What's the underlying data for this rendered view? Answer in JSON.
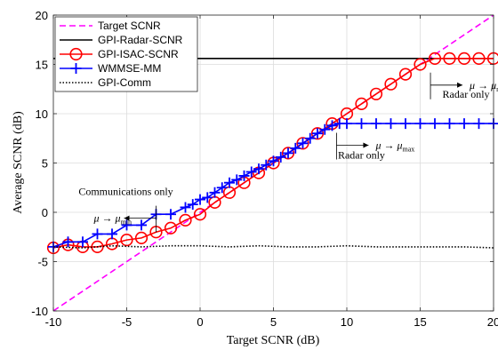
{
  "chart_data": {
    "type": "line",
    "xlabel": "Target SCNR (dB)",
    "ylabel": "Average SCNR (dB)",
    "xlim": [
      -10,
      20
    ],
    "ylim": [
      -10,
      20
    ],
    "xticks": [
      -10,
      -5,
      0,
      5,
      10,
      15,
      20
    ],
    "yticks": [
      -10,
      -5,
      0,
      5,
      10,
      15,
      20
    ],
    "grid": true,
    "legend_position": "top-left",
    "series": [
      {
        "name": "Target SCNR",
        "color": "#ff00ff",
        "style": "dashed",
        "marker": "none",
        "x": [
          -10,
          20
        ],
        "y": [
          -10,
          20
        ]
      },
      {
        "name": "GPI-Radar-SCNR",
        "color": "#000000",
        "style": "solid",
        "marker": "none",
        "x": [
          -10,
          20
        ],
        "y": [
          15.6,
          15.6
        ]
      },
      {
        "name": "GPI-ISAC-SCNR",
        "color": "#ff0000",
        "style": "solid",
        "marker": "circle",
        "x": [
          -10,
          -9,
          -8,
          -7,
          -6,
          -5,
          -4,
          -3,
          -2,
          -1,
          0,
          1,
          2,
          3,
          4,
          5,
          6,
          7,
          8,
          9,
          10,
          11,
          12,
          13,
          14,
          15,
          16,
          17,
          18,
          19,
          20
        ],
        "y": [
          -3.6,
          -3.3,
          -3.5,
          -3.5,
          -3.2,
          -2.8,
          -2.6,
          -2.0,
          -1.6,
          -0.8,
          -0.2,
          1.0,
          2.0,
          3.0,
          4.0,
          5.0,
          6.0,
          7.0,
          8.0,
          9.0,
          10.0,
          11.0,
          12.0,
          13.0,
          14.0,
          15.0,
          15.6,
          15.6,
          15.6,
          15.6,
          15.6
        ]
      },
      {
        "name": "WMMSE-MM",
        "color": "#0000ff",
        "style": "solid",
        "marker": "plus",
        "x": [
          -10,
          -9,
          -8,
          -7,
          -6,
          -5,
          -4,
          -3,
          -2,
          -1,
          -0.5,
          0,
          0.5,
          1,
          1.5,
          2,
          2.5,
          3,
          3.5,
          4,
          4.5,
          5,
          5.5,
          6,
          6.5,
          7,
          7.5,
          8,
          8.5,
          9,
          9.5,
          10,
          11,
          12,
          13,
          14,
          15,
          16,
          17,
          18,
          19,
          20
        ],
        "y": [
          -3.5,
          -3.0,
          -3.0,
          -2.2,
          -2.2,
          -1.3,
          -1.3,
          -0.2,
          -0.2,
          0.5,
          0.8,
          1.3,
          1.5,
          2.0,
          2.5,
          3.0,
          3.3,
          3.7,
          4.1,
          4.4,
          4.8,
          5.2,
          5.6,
          6.0,
          6.5,
          7.0,
          7.5,
          8.0,
          8.4,
          8.8,
          9.0,
          9.0,
          9.0,
          9.0,
          9.0,
          9.0,
          9.0,
          9.0,
          9.0,
          9.0,
          9.0,
          9.0
        ]
      },
      {
        "name": "GPI-Comm",
        "color": "#000000",
        "style": "dotted",
        "marker": "none",
        "x": [
          -10,
          -8,
          -6,
          -4,
          -2,
          0,
          2,
          4,
          6,
          8,
          10,
          12,
          14,
          16,
          18,
          20
        ],
        "y": [
          -3.5,
          -3.6,
          -3.4,
          -3.5,
          -3.4,
          -3.4,
          -3.5,
          -3.4,
          -3.5,
          -3.5,
          -3.4,
          -3.5,
          -3.5,
          -3.5,
          -3.5,
          -3.6
        ]
      }
    ],
    "annotations": [
      {
        "text": "Communications only",
        "math": "μ → μ",
        "sub": "min",
        "at_x": -3,
        "label_y": 2.1,
        "arrow_y": -0.6,
        "direction": "left"
      },
      {
        "text": "Radar only",
        "math": "μ → μ",
        "sub": "max",
        "at_x": 9.3,
        "label_y": 5.8,
        "arrow_y": 6.8,
        "direction": "right"
      },
      {
        "text": "Radar only",
        "math": "μ → μ",
        "sub": "max",
        "at_x": 15.7,
        "label_y": 12.0,
        "arrow_y": 12.9,
        "direction": "right"
      }
    ]
  }
}
